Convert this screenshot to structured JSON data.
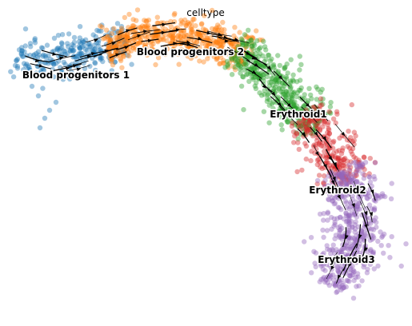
{
  "chart_data": {
    "type": "scatter",
    "title": "celltype",
    "xlabel": "",
    "ylabel": "",
    "axes_visible": false,
    "grid": false,
    "legend": "on data",
    "overlay": "velocity streamlines (black, with arrowheads)",
    "series": [
      {
        "name": "Blood progenitors 1",
        "color": "#1f77b4"
      },
      {
        "name": "Blood progenitors 2",
        "color": "#ff7f0e"
      },
      {
        "name": "Erythroid1",
        "color": "#2ca02c"
      },
      {
        "name": "Erythroid2",
        "color": "#d62728"
      },
      {
        "name": "Erythroid3",
        "color": "#9467bd"
      }
    ]
  }
}
